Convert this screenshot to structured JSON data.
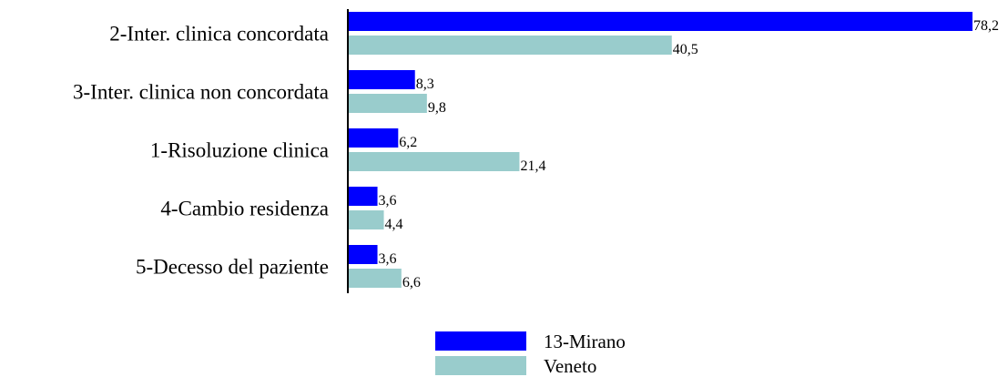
{
  "chart_data": {
    "type": "bar",
    "orientation": "horizontal",
    "categories": [
      "2-Inter. clinica concordata",
      "3-Inter. clinica non concordata",
      "1-Risoluzione clinica",
      "4-Cambio residenza",
      "5-Decesso del paziente"
    ],
    "series": [
      {
        "name": "13-Mirano",
        "color": "#0000ff",
        "values": [
          78.2,
          8.3,
          6.2,
          3.6,
          3.6
        ],
        "value_labels": [
          "78,2",
          "8,3",
          "6,2",
          "3,6",
          "3,6"
        ]
      },
      {
        "name": "Veneto",
        "color": "#99cccc",
        "values": [
          40.5,
          9.8,
          21.4,
          4.4,
          6.6
        ],
        "value_labels": [
          "40,5",
          "9,8",
          "21,4",
          "4,4",
          "6,6"
        ]
      }
    ],
    "xlim": [
      0,
      78.2
    ],
    "grid": false,
    "legend": "bottom-center"
  }
}
